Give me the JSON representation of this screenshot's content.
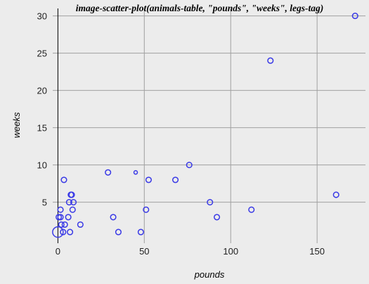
{
  "chart_data": {
    "type": "scatter",
    "title": "image-scatter-plot(animals-table, \"pounds\", \"weeks\", legs-tag)",
    "xlabel": "pounds",
    "ylabel": "weeks",
    "xlim": [
      -3,
      178
    ],
    "ylim": [
      -0.5,
      31
    ],
    "xticks": [
      0,
      50,
      100,
      150
    ],
    "yticks": [
      5,
      10,
      15,
      20,
      25,
      30
    ],
    "grid": true,
    "marker_color": "#3a3ae6",
    "points": [
      {
        "x": 0,
        "y": 1,
        "size": "large"
      },
      {
        "x": 0.5,
        "y": 3
      },
      {
        "x": 1.5,
        "y": 4
      },
      {
        "x": 1.5,
        "y": 3
      },
      {
        "x": 2,
        "y": 2
      },
      {
        "x": 3,
        "y": 1
      },
      {
        "x": 3.5,
        "y": 8
      },
      {
        "x": 4,
        "y": 2
      },
      {
        "x": 6,
        "y": 3
      },
      {
        "x": 6.5,
        "y": 5
      },
      {
        "x": 7,
        "y": 1
      },
      {
        "x": 7.5,
        "y": 6
      },
      {
        "x": 8,
        "y": 6
      },
      {
        "x": 8.5,
        "y": 4
      },
      {
        "x": 9,
        "y": 5
      },
      {
        "x": 13,
        "y": 2
      },
      {
        "x": 29,
        "y": 9
      },
      {
        "x": 32,
        "y": 3
      },
      {
        "x": 35,
        "y": 1
      },
      {
        "x": 45,
        "y": 9,
        "size": "small"
      },
      {
        "x": 48,
        "y": 1
      },
      {
        "x": 51,
        "y": 4
      },
      {
        "x": 52.5,
        "y": 8
      },
      {
        "x": 68,
        "y": 8
      },
      {
        "x": 76,
        "y": 10
      },
      {
        "x": 88,
        "y": 5
      },
      {
        "x": 92,
        "y": 3
      },
      {
        "x": 112,
        "y": 4
      },
      {
        "x": 123,
        "y": 24
      },
      {
        "x": 161,
        "y": 6
      },
      {
        "x": 172,
        "y": 30
      }
    ]
  }
}
